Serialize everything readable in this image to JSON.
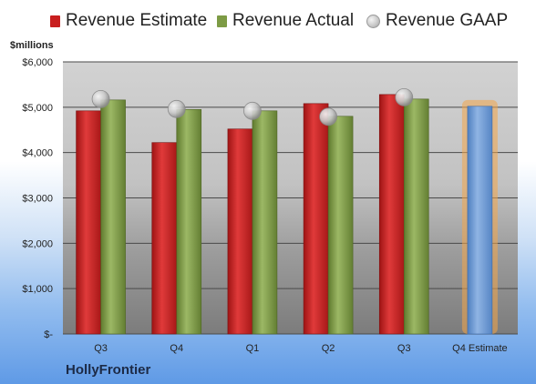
{
  "legend": {
    "estimate": "Revenue Estimate",
    "actual": "Revenue Actual",
    "gaap": "Revenue GAAP"
  },
  "units_label": "$millions",
  "company": "HollyFrontier",
  "colors": {
    "estimate": "#c81e1e",
    "actual": "#7d9b45",
    "forecast": "#6f9ad2",
    "forecast_glow": "#f3a64a",
    "gaap": "#bdbdbd"
  },
  "chart_data": {
    "type": "bar",
    "categories": [
      "Q3",
      "Q4",
      "Q1",
      "Q2",
      "Q3",
      "Q4 Estimate"
    ],
    "ylim": [
      0,
      6000
    ],
    "y_ticks": [
      0,
      1000,
      2000,
      3000,
      4000,
      5000,
      6000
    ],
    "y_tick_labels": [
      "$-",
      "$1,000",
      "$2,000",
      "$3,000",
      "$4,000",
      "$5,000",
      "$6,000"
    ],
    "series": [
      {
        "name": "Revenue Estimate",
        "values": [
          4920,
          4220,
          4520,
          5080,
          5280,
          null
        ]
      },
      {
        "name": "Revenue Actual",
        "values": [
          5160,
          4950,
          4920,
          4800,
          5180,
          5020
        ]
      },
      {
        "name": "Revenue GAAP",
        "values": [
          5180,
          4960,
          4920,
          4790,
          5220,
          null
        ]
      }
    ],
    "forecast_index": 5,
    "grid": true
  }
}
